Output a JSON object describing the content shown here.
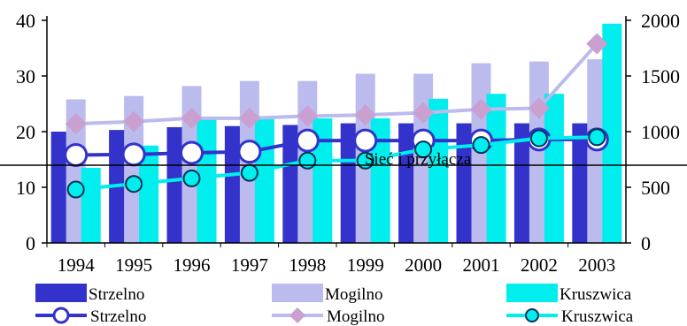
{
  "chart_data": {
    "type": "bar",
    "categories": [
      "1994",
      "1995",
      "1996",
      "1997",
      "1998",
      "1999",
      "2000",
      "2001",
      "2002",
      "2003"
    ],
    "left_axis": {
      "ylim": [
        0,
        40
      ],
      "ticks": [
        "0",
        "10",
        "20",
        "30",
        "40"
      ]
    },
    "right_axis": {
      "ylim": [
        0,
        2000
      ],
      "ticks": [
        "0",
        "500",
        "1000",
        "1500",
        "2000"
      ]
    },
    "bar_series": [
      {
        "name": "Strzelno",
        "color": "#3333cc",
        "axis": "left",
        "values": [
          20,
          20.3,
          20.8,
          21,
          21.2,
          21.5,
          21.5,
          21.5,
          21.5,
          21.5
        ]
      },
      {
        "name": "Mogilno",
        "color": "#bbbbee",
        "axis": "left",
        "values": [
          25.8,
          26.4,
          28.2,
          29.1,
          29.1,
          30.4,
          30.4,
          32.3,
          32.6,
          33
        ]
      },
      {
        "name": "Kruszwica",
        "color": "#00eeee",
        "axis": "left",
        "values": [
          13.5,
          17.5,
          22.4,
          22.4,
          22.4,
          22.4,
          25.9,
          26.8,
          26.8,
          39.4
        ]
      }
    ],
    "line_series": [
      {
        "name": "Strzelno",
        "color": "#3333cc",
        "marker": "circle",
        "axis": "right",
        "values": [
          790,
          795,
          810,
          820,
          920,
          920,
          920,
          920,
          930,
          930
        ]
      },
      {
        "name": "Mogilno",
        "color": "#c9a0d0",
        "line_color": "#bbbbee",
        "marker": "diamond",
        "axis": "right",
        "values": [
          1070,
          1090,
          1120,
          1120,
          1140,
          1150,
          1170,
          1200,
          1210,
          1790
        ]
      },
      {
        "name": "Kruszwica",
        "color": "#00eeee",
        "marker": "circle-filled",
        "axis": "right",
        "values": [
          480,
          530,
          580,
          630,
          740,
          740,
          840,
          880,
          940,
          950
        ]
      }
    ],
    "annotation": "Sieć i przyłącza",
    "grid": false,
    "legend_placement": "bottom"
  }
}
